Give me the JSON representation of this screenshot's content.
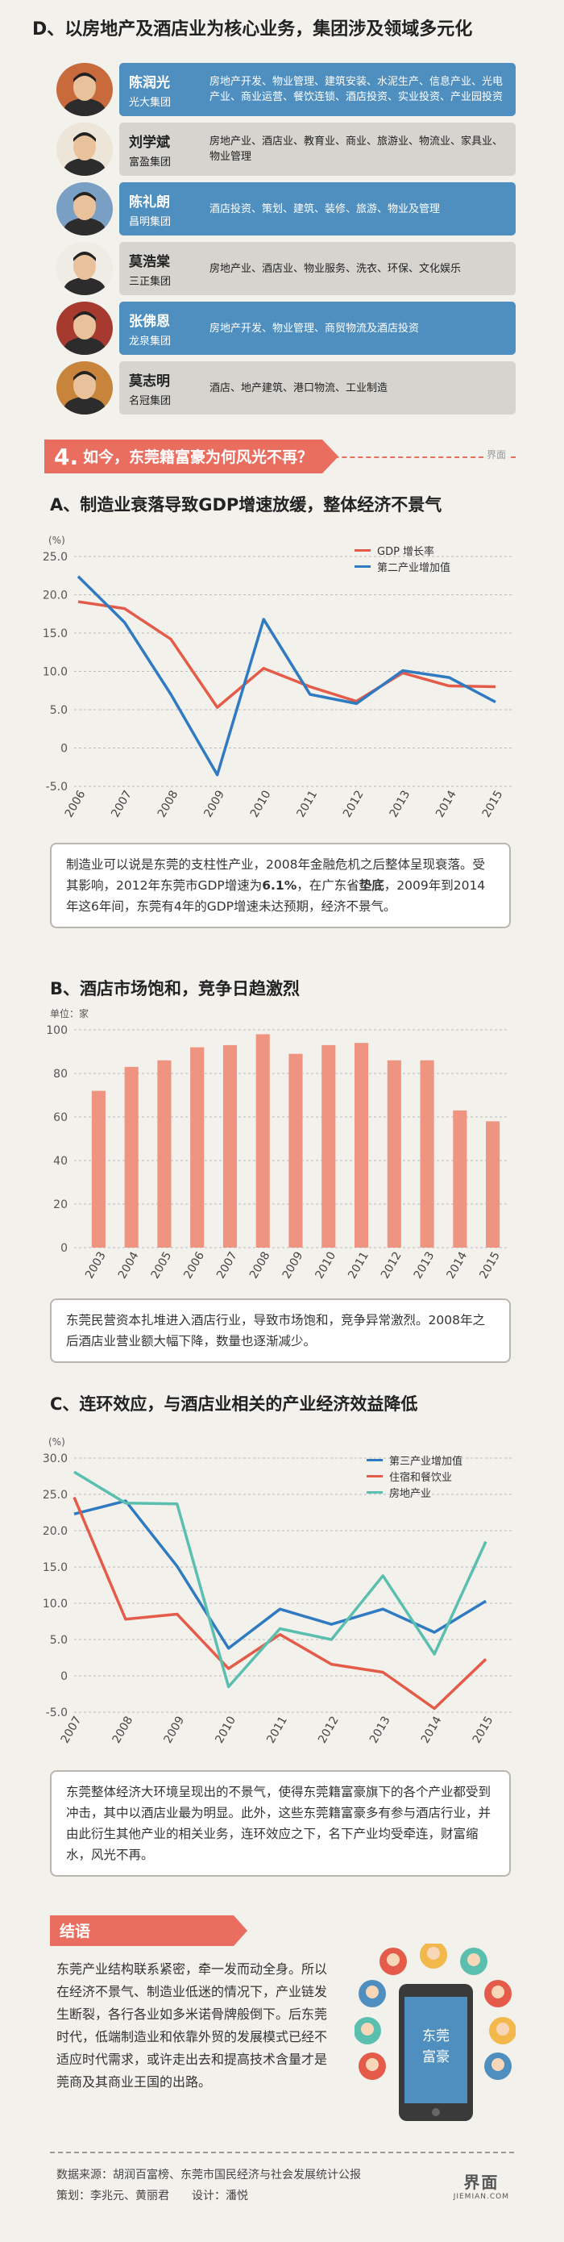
{
  "sectionD": {
    "title": "D、以房地产及酒店业为核心业务，集团涉及领域多元化",
    "people": [
      {
        "name": "陈润光",
        "group": "光大集团",
        "business": "房地产开发、物业管理、建筑安装、水泥生产、信息产业、光电产业、商业运营、餐饮连锁、酒店投资、实业投资、产业园投资",
        "style": "blue"
      },
      {
        "name": "刘学斌",
        "group": "富盈集团",
        "business": "房地产业、酒店业、教育业、商业、旅游业、物流业、家具业、物业管理",
        "style": "gray"
      },
      {
        "name": "陈礼朗",
        "group": "昌明集团",
        "business": "酒店投资、策划、建筑、装修、旅游、物业及管理",
        "style": "blue"
      },
      {
        "name": "莫浩棠",
        "group": "三正集团",
        "business": "房地产业、酒店业、物业服务、洗衣、环保、文化娱乐",
        "style": "gray"
      },
      {
        "name": "张佛恩",
        "group": "龙泉集团",
        "business": "房地产开发、物业管理、商贸物流及酒店投资",
        "style": "blue"
      },
      {
        "name": "莫志明",
        "group": "名冠集团",
        "business": "酒店、地产建筑、港口物流、工业制造",
        "style": "gray"
      }
    ]
  },
  "section4": {
    "number": "4.",
    "title": "如今，东莞籍富豪为何风光不再？",
    "logo": "界面"
  },
  "sectionA": {
    "title": "A、制造业衰落导致GDP增速放缓，整体经济不景气",
    "text_parts": [
      "制造业可以说是东莞的支柱性产业，2008年金融危机之后整体呈现衰落。受其影响，2012年东莞市GDP增速为",
      "6.1%",
      "，在广东省",
      "垫底",
      "，2009年到2014年这6年间，东莞有4年的GDP增速未达预期，经济不景气。"
    ]
  },
  "sectionB": {
    "title": "B、酒店市场饱和，竞争日趋激烈",
    "text": "东莞民营资本扎堆进入酒店行业，导致市场饱和，竞争异常激烈。2008年之后酒店业营业额大幅下降，数量也逐渐减少。"
  },
  "sectionC": {
    "title": "C、连环效应，与酒店业相关的产业经济效益降低",
    "text": "东莞整体经济大环境呈现出的不景气，使得东莞籍富豪旗下的各个产业都受到冲击，其中以酒店业最为明显。此外，这些东莞籍富豪多有参与酒店行业，并由此衍生其他产业的相关业务，连环效应之下，名下产业均受牵连，财富缩水，风光不再。"
  },
  "conclusion": {
    "tag": "结语",
    "text": "东莞产业结构联系紧密，牵一发而动全身。所以在经济不景气、制造业低迷的情况下，产业链发生断裂，各行各业如多米诺骨牌般倒下。后东莞时代，低端制造业和依靠外贸的发展模式已经不适应时代需求，或许走出去和提高技术含量才是莞商及其商业王国的出路。",
    "phone_text1": "东莞",
    "phone_text2": "富豪"
  },
  "footer": {
    "source": "数据来源：胡润百富榜、东莞市国民经济与社会发展统计公报",
    "credits": "策划：李兆元、黄丽君　　设计：潘悦",
    "logo_cn": "界面",
    "logo_en": "JIEMIAN.COM"
  },
  "colors": {
    "blue": "#2f7ac0",
    "red": "#e55b4a",
    "teal": "#5bbfb0",
    "bar": "#ee9480",
    "banner": "#e96e5f"
  },
  "chart_data": [
    {
      "type": "line",
      "unit_label": "(%)",
      "x": [
        "2006",
        "2007",
        "2008",
        "2009",
        "2010",
        "2011",
        "2012",
        "2013",
        "2014",
        "2015"
      ],
      "ylim": [
        -5,
        25
      ],
      "yticks": [
        "25.0",
        "20.0",
        "15.0",
        "10.0",
        "5.0",
        "0",
        "-5.0"
      ],
      "grid": true,
      "legend": "top-right",
      "series": [
        {
          "name": "GDP 增长率",
          "color": "#e55b4a",
          "values": [
            19.1,
            18.2,
            14.2,
            5.3,
            10.4,
            8.0,
            6.1,
            9.8,
            8.1,
            8.0
          ]
        },
        {
          "name": "第二产业增加值",
          "color": "#2f7ac0",
          "values": [
            22.4,
            16.4,
            7.0,
            -3.5,
            16.8,
            7.0,
            5.8,
            10.1,
            9.2,
            6.0
          ]
        }
      ]
    },
    {
      "type": "bar",
      "unit_label": "单位：家",
      "categories": [
        "2003",
        "2004",
        "2005",
        "2006",
        "2007",
        "2008",
        "2009",
        "2010",
        "2011",
        "2012",
        "2013",
        "2014",
        "2015"
      ],
      "values": [
        72,
        83,
        86,
        92,
        93,
        98,
        89,
        93,
        94,
        86,
        86,
        63,
        58
      ],
      "ylim": [
        0,
        100
      ],
      "yticks": [
        "100",
        "80",
        "60",
        "40",
        "20",
        "0"
      ],
      "grid": true
    },
    {
      "type": "line",
      "unit_label": "(%)",
      "x": [
        "2007",
        "2008",
        "2009",
        "2010",
        "2011",
        "2012",
        "2013",
        "2014",
        "2015"
      ],
      "ylim": [
        -5,
        30
      ],
      "yticks": [
        "30.0",
        "25.0",
        "20.0",
        "15.0",
        "10.0",
        "5.0",
        "0",
        "-5.0"
      ],
      "grid": true,
      "legend": "top-right",
      "series": [
        {
          "name": "第三产业增加值",
          "color": "#2f7ac0",
          "values": [
            22.3,
            24.1,
            15.1,
            3.8,
            9.2,
            7.1,
            9.2,
            6.0,
            10.3
          ]
        },
        {
          "name": "住宿和餐饮业",
          "color": "#e55b4a",
          "values": [
            24.6,
            7.8,
            8.5,
            1.0,
            5.7,
            1.6,
            0.5,
            -4.5,
            2.3
          ]
        },
        {
          "name": "房地产业",
          "color": "#5bbfb0",
          "values": [
            28.1,
            23.8,
            23.7,
            -1.5,
            6.5,
            5.0,
            13.8,
            3.0,
            18.5
          ]
        }
      ]
    }
  ]
}
